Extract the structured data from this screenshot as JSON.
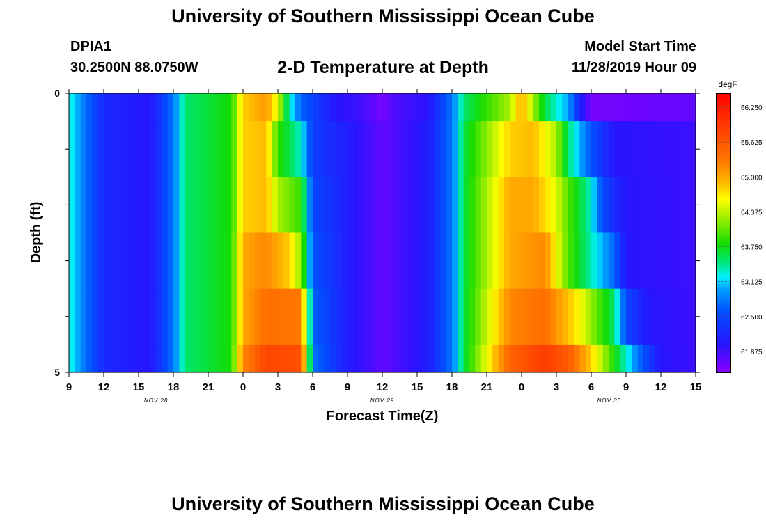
{
  "header": {
    "title": "University of Southern Mississippi Ocean Cube",
    "station": "DPIA1",
    "coords": "30.2500N 88.0750W",
    "subtitle": "2-D Temperature at Depth",
    "model_start_label": "Model Start Time",
    "model_start_value": "11/28/2019 Hour 09"
  },
  "footer": {
    "title": "University of Southern Mississippi Ocean Cube"
  },
  "chart_data": {
    "type": "heatmap",
    "xlabel": "Forecast Time(Z)",
    "ylabel": "Depth (ft)",
    "x_start_hour": 9,
    "x_hours_total": 54,
    "x_tick_labels": [
      "9",
      "12",
      "15",
      "18",
      "21",
      "0",
      "3",
      "6",
      "9",
      "12",
      "15",
      "18",
      "21",
      "0",
      "3",
      "6",
      "9",
      "12",
      "15"
    ],
    "date_labels": [
      "NOV 28",
      "NOV 29",
      "NOV 30"
    ],
    "y_tick_labels": [
      "0",
      "5"
    ],
    "ylim": [
      0,
      5
    ],
    "colorbar": {
      "unit": "degF",
      "range": [
        61.5,
        66.5
      ],
      "tick_labels": [
        "66.250",
        "65.625",
        "65.000",
        "64.375",
        "63.750",
        "63.125",
        "62.500",
        "61.875"
      ],
      "tick_values": [
        66.25,
        65.625,
        65.0,
        64.375,
        63.75,
        63.125,
        62.5,
        61.875
      ]
    },
    "depth_rows": [
      "0.0-0.5",
      "0.5-1.5",
      "1.5-2.5",
      "2.5-3.5",
      "3.5-4.5",
      "4.5-5.0"
    ],
    "temperature_profiles": {
      "comment": "temperature (degF) vs forecast hour offset from start, per depth layer",
      "rows": [
        [
          [
            0,
            63.3
          ],
          [
            3,
            62.2
          ],
          [
            7,
            62.0
          ],
          [
            9,
            62.8
          ],
          [
            10,
            63.5
          ],
          [
            14,
            63.8
          ],
          [
            15,
            64.8
          ],
          [
            17,
            65.1
          ],
          [
            18,
            64.5
          ],
          [
            19,
            63.3
          ],
          [
            20,
            62.7
          ],
          [
            23,
            62.0
          ],
          [
            25,
            61.9
          ],
          [
            27,
            61.6
          ],
          [
            28,
            61.8
          ],
          [
            31,
            62.0
          ],
          [
            33,
            62.8
          ],
          [
            34,
            63.5
          ],
          [
            38,
            64.3
          ],
          [
            39,
            65.0
          ],
          [
            40,
            64.3
          ],
          [
            41,
            63.6
          ],
          [
            43,
            63.0
          ],
          [
            44,
            62.2
          ],
          [
            45,
            61.6
          ],
          [
            54,
            61.7
          ]
        ],
        [
          [
            0,
            63.3
          ],
          [
            3,
            62.2
          ],
          [
            7,
            62.0
          ],
          [
            9,
            62.8
          ],
          [
            10,
            63.5
          ],
          [
            14,
            63.8
          ],
          [
            15,
            64.8
          ],
          [
            17,
            64.9
          ],
          [
            18,
            63.9
          ],
          [
            20,
            63.3
          ],
          [
            21,
            62.4
          ],
          [
            24,
            62.1
          ],
          [
            27,
            61.7
          ],
          [
            28,
            61.8
          ],
          [
            31,
            62.1
          ],
          [
            33,
            62.8
          ],
          [
            34,
            63.6
          ],
          [
            38,
            64.8
          ],
          [
            40,
            64.9
          ],
          [
            42,
            64.3
          ],
          [
            43,
            63.5
          ],
          [
            45,
            62.6
          ],
          [
            47,
            62.0
          ],
          [
            54,
            61.9
          ]
        ],
        [
          [
            0,
            63.3
          ],
          [
            3,
            62.2
          ],
          [
            7,
            62.0
          ],
          [
            9,
            62.8
          ],
          [
            10,
            63.5
          ],
          [
            14,
            63.8
          ],
          [
            15,
            64.8
          ],
          [
            17,
            64.9
          ],
          [
            18,
            64.3
          ],
          [
            20,
            63.9
          ],
          [
            21,
            62.5
          ],
          [
            24,
            62.1
          ],
          [
            27,
            61.7
          ],
          [
            28,
            61.8
          ],
          [
            31,
            62.1
          ],
          [
            33,
            62.8
          ],
          [
            34,
            63.6
          ],
          [
            38,
            65.0
          ],
          [
            40,
            65.0
          ],
          [
            42,
            64.5
          ],
          [
            43,
            64.0
          ],
          [
            45,
            63.3
          ],
          [
            46,
            62.5
          ],
          [
            48,
            62.0
          ],
          [
            54,
            61.9
          ]
        ],
        [
          [
            0,
            63.3
          ],
          [
            3,
            62.2
          ],
          [
            7,
            62.0
          ],
          [
            9,
            62.8
          ],
          [
            10,
            63.5
          ],
          [
            14,
            63.8
          ],
          [
            15,
            65.0
          ],
          [
            17,
            65.2
          ],
          [
            19,
            64.8
          ],
          [
            20,
            64.2
          ],
          [
            21,
            62.6
          ],
          [
            24,
            62.1
          ],
          [
            27,
            61.7
          ],
          [
            28,
            61.8
          ],
          [
            31,
            62.1
          ],
          [
            33,
            62.8
          ],
          [
            34,
            63.6
          ],
          [
            38,
            65.0
          ],
          [
            41,
            65.2
          ],
          [
            42,
            64.6
          ],
          [
            43,
            64.0
          ],
          [
            47,
            62.7
          ],
          [
            48,
            62.0
          ],
          [
            54,
            61.9
          ]
        ],
        [
          [
            0,
            63.3
          ],
          [
            3,
            62.2
          ],
          [
            7,
            62.0
          ],
          [
            9,
            62.8
          ],
          [
            10,
            63.5
          ],
          [
            14,
            63.8
          ],
          [
            15,
            65.0
          ],
          [
            17,
            65.4
          ],
          [
            20,
            65.3
          ],
          [
            21,
            62.7
          ],
          [
            24,
            62.1
          ],
          [
            27,
            61.7
          ],
          [
            28,
            61.8
          ],
          [
            31,
            62.1
          ],
          [
            33,
            62.8
          ],
          [
            34,
            63.6
          ],
          [
            38,
            65.2
          ],
          [
            41,
            65.4
          ],
          [
            44,
            64.6
          ],
          [
            47,
            63.5
          ],
          [
            48,
            62.5
          ],
          [
            50,
            62.0
          ],
          [
            54,
            61.9
          ]
        ],
        [
          [
            0,
            63.3
          ],
          [
            3,
            62.2
          ],
          [
            7,
            62.0
          ],
          [
            9,
            62.8
          ],
          [
            10,
            63.5
          ],
          [
            14,
            63.8
          ],
          [
            15,
            65.2
          ],
          [
            17,
            65.8
          ],
          [
            20,
            65.7
          ],
          [
            21,
            62.8
          ],
          [
            24,
            62.1
          ],
          [
            27,
            61.7
          ],
          [
            28,
            61.8
          ],
          [
            31,
            62.1
          ],
          [
            33,
            62.8
          ],
          [
            34,
            63.6
          ],
          [
            38,
            65.5
          ],
          [
            41,
            65.9
          ],
          [
            43,
            65.6
          ],
          [
            45,
            64.8
          ],
          [
            47,
            63.8
          ],
          [
            49,
            62.8
          ],
          [
            51,
            62.0
          ],
          [
            54,
            61.9
          ]
        ]
      ]
    }
  }
}
